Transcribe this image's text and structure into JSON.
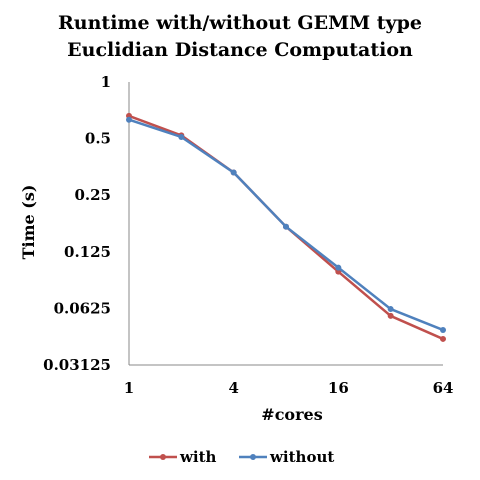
{
  "chart_data": {
    "type": "line",
    "title": [
      "Runtime with/without GEMM type",
      "Euclidian Distance Computation"
    ],
    "xlabel": "#cores",
    "ylabel": "Time (s)",
    "x_scale": "log2",
    "y_scale": "log2",
    "xlim": [
      1,
      64
    ],
    "ylim": [
      0.03125,
      1
    ],
    "x_ticks": [
      1,
      4,
      16,
      64
    ],
    "x_tick_labels": [
      "1",
      "4",
      "16",
      "64"
    ],
    "y_ticks": [
      0.03125,
      0.0625,
      0.125,
      0.25,
      0.5,
      1
    ],
    "y_tick_labels": [
      "0.03125",
      "0.0625",
      "0.125",
      "0.25",
      "0.5",
      "1"
    ],
    "grid": false,
    "legend_position": "bottom",
    "x": [
      1,
      2,
      4,
      8,
      16,
      32,
      64
    ],
    "series": [
      {
        "name": "with",
        "color": "#C0504D",
        "values": [
          0.66,
          0.52,
          0.33,
          0.17,
          0.098,
          0.057,
          0.043
        ]
      },
      {
        "name": "without",
        "color": "#4F81BD",
        "values": [
          0.63,
          0.51,
          0.33,
          0.17,
          0.103,
          0.062,
          0.048
        ]
      }
    ]
  }
}
